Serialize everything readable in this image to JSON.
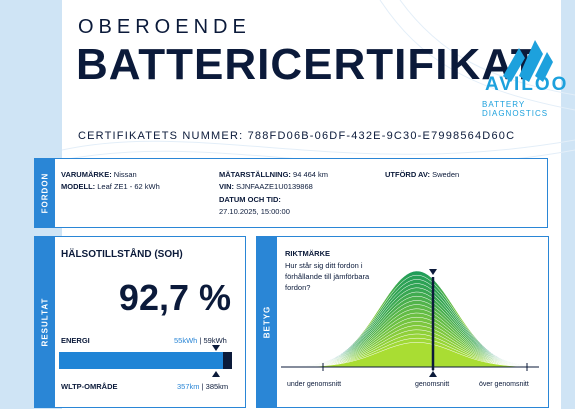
{
  "header": {
    "overline": "OBEROENDE",
    "title": "BATTERICERTIFIKAT",
    "certificate_number": "CERTIFIKATETS NUMMER: 788FD06B-06DF-432E-9C30-E7998564D60C"
  },
  "logo": {
    "word": "AVILOO",
    "subtitle": "BATTERY DIAGNOSTICS",
    "icon": "aviloo-logo-icon"
  },
  "vehicle": {
    "tab": "FORDON",
    "brand_label": "VARUMÄRKE:",
    "brand": "Nissan",
    "model_label": "MODELL:",
    "model": "Leaf ZE1 - 62 kWh",
    "odometer_label": "MÄTARSTÄLLNING:",
    "odometer": "94 464 km",
    "vin_label": "VIN:",
    "vin": "SJNFAAZE1U0139868",
    "date_label": "DATUM OCH TID:",
    "date": "27.10.2025, 15:00:00",
    "performed_label": "UTFÖRD AV:",
    "performed": "Sweden"
  },
  "result": {
    "tab": "RESULTAT",
    "soh_label": "HÄLSOTILLSTÅND (SOH)",
    "soh_value": "92,7 %",
    "soh_fraction": 0.927,
    "energy_label": "ENERGI",
    "energy_current": "55kWh",
    "energy_nominal": "59kWh",
    "range_label": "WLTP-OMRÅDE",
    "range_current": "357km",
    "range_nominal": "385km"
  },
  "rating": {
    "tab": "BETYG",
    "label": "RIKTMÄRKE",
    "question": "Hur står sig ditt fordon i förhållande till jämförbara fordon?",
    "x_labels": [
      "under genomsnitt",
      "genomsnitt",
      "över genomsnitt"
    ]
  },
  "colors": {
    "accent": "#2a86d6",
    "navy": "#0b1a3a",
    "logo": "#1da1dd",
    "stripe": "#cfe4f5"
  }
}
